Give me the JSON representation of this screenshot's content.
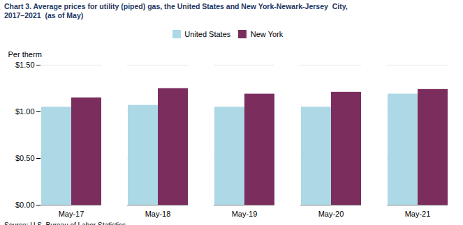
{
  "chart_data": {
    "type": "bar",
    "title": "Chart 3. Average prices for utility (piped) gas, the United States and New York-Newark-Jersey  City,",
    "subtitle": "2017–2021  (as of May)",
    "ylabel": "Per therm",
    "source": "Source: U.S. Bureau of Labor Statistics.",
    "categories": [
      "May-17",
      "May-18",
      "May-19",
      "May-20",
      "May-21"
    ],
    "series": [
      {
        "name": "United States",
        "color": "#ADD8E6",
        "values": [
          1.05,
          1.07,
          1.05,
          1.05,
          1.19
        ]
      },
      {
        "name": "New York",
        "color": "#7B2D5E",
        "values": [
          1.15,
          1.25,
          1.19,
          1.21,
          1.24
        ]
      }
    ],
    "ylim": [
      0.0,
      1.5
    ],
    "yticks": [
      {
        "value": 0.0,
        "label": "$0.00"
      },
      {
        "value": 0.5,
        "label": "$0.50"
      },
      {
        "value": 1.0,
        "label": "$1.00"
      },
      {
        "value": 1.5,
        "label": "$1.50"
      }
    ],
    "grid": true,
    "legend": "top"
  }
}
